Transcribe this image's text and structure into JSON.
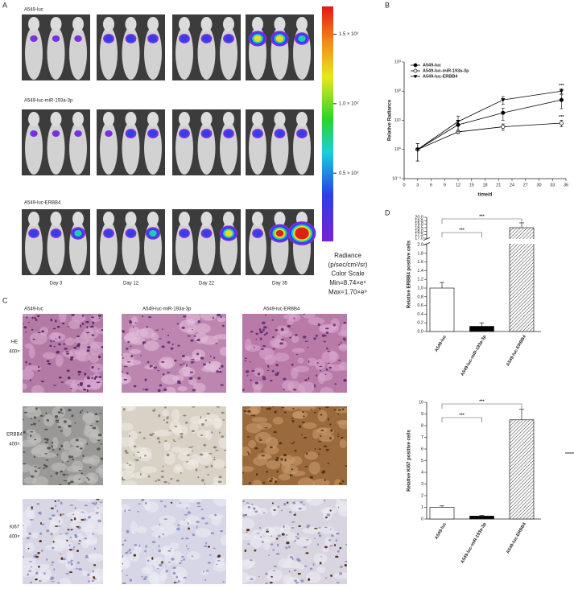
{
  "labels": [
    "A",
    "B",
    "C",
    "D"
  ],
  "imaging": {
    "rows": [
      "A549-luc",
      "A549-luc-miR-193a-3p",
      "A549-luc-ERBB4"
    ],
    "days": [
      "Day 3",
      "Day 12",
      "Day 22",
      "Day 35"
    ],
    "colorbar": {
      "lim": [
        8740000,
        1700000000
      ],
      "ticks": [
        {
          "value": 1500000000,
          "label": "1.5 × 10⁹"
        },
        {
          "value": 1000000000,
          "label": "1.0 × 10⁹"
        },
        {
          "value": 500000000,
          "label": "0.5 × 10⁹"
        }
      ]
    },
    "legend": [
      "Radiance",
      "(p/sec/cm²/sr)",
      "Color Scale",
      "Min=8.74×e⁶",
      "Max=1.70×e⁹"
    ]
  },
  "histology": {
    "columns": [
      "A549-luc",
      "A549-luc-miR-193a-3p",
      "A549-luc-ERBB4"
    ],
    "rows": [
      {
        "stain": "HE",
        "magnification": "400×"
      },
      {
        "stain": "ERBB4",
        "magnification": "400×"
      },
      {
        "stain": "Ki67",
        "magnification": "400×"
      }
    ]
  },
  "chart_data": [
    {
      "type": "line",
      "x": [
        3,
        12,
        22,
        35
      ],
      "series": [
        {
          "name": "A549-luc",
          "marker": "circle-filled",
          "values": [
            1,
            7,
            18,
            50
          ],
          "errors": [
            0.6,
            3,
            8,
            25
          ]
        },
        {
          "name": "A549-luc-miR-193a-3p",
          "marker": "circle-open",
          "values": [
            1,
            4,
            6,
            8
          ],
          "errors": [
            0.6,
            0.5,
            1.5,
            2
          ]
        },
        {
          "name": "A549-luc-ERBB4",
          "marker": "triangle-filled",
          "values": [
            1,
            9,
            50,
            100
          ],
          "errors": [
            0.6,
            5,
            15,
            20
          ]
        }
      ],
      "color": "#000000",
      "xlim": [
        0,
        36
      ],
      "xticks": [
        0,
        3,
        6,
        9,
        12,
        15,
        18,
        21,
        24,
        27,
        30,
        33,
        36
      ],
      "ylim": [
        0.1,
        1000
      ],
      "log_y": true,
      "yticks": [
        {
          "value": 0.1,
          "label": "10⁻¹"
        },
        {
          "value": 1,
          "label": "10⁰"
        },
        {
          "value": 10,
          "label": "10¹"
        },
        {
          "value": 100,
          "label": "10²"
        },
        {
          "value": 1000,
          "label": "10³"
        }
      ],
      "xlabel": "time/d",
      "ylabel": "Relative Radiance",
      "annotations": [
        "***",
        "***"
      ]
    },
    {
      "type": "bar",
      "categories": [
        "A549-luc",
        "A549-luc-miR-193a-3p",
        "A549-luc-ERBB4"
      ],
      "values": [
        1.0,
        0.12,
        18.5
      ],
      "errors": [
        0.13,
        0.08,
        0.7
      ],
      "patterns": [
        "none",
        "solid",
        "hatch"
      ],
      "ylim": [
        0,
        20
      ],
      "ybreak": [
        2,
        17
      ],
      "yticks": [
        {
          "value": 0,
          "label": "0.0"
        },
        0.2,
        0.4,
        0.6,
        0.8,
        {
          "value": 1,
          "label": "1.0"
        },
        1.2,
        1.4,
        1.6,
        1.8,
        {
          "value": 2,
          "label": "2.0"
        },
        {
          "value": 17,
          "label": "17.0"
        },
        17.5,
        {
          "value": 18,
          "label": "18.0"
        },
        18.5,
        {
          "value": 19,
          "label": "19.0"
        },
        19.5,
        {
          "value": 20,
          "label": "20.0"
        }
      ],
      "ylabel": "Relative ERBB4 positive cells",
      "annotations": [
        "***",
        "***"
      ]
    },
    {
      "type": "bar",
      "categories": [
        "A549-luc",
        "A549-luc-miR-193a-3p",
        "A549-luc-ERBB4"
      ],
      "values": [
        1.0,
        0.25,
        8.5
      ],
      "errors": [
        0.12,
        0.05,
        0.9
      ],
      "patterns": [
        "none",
        "solid",
        "hatch"
      ],
      "ylim": [
        0,
        10
      ],
      "yticks": [
        0,
        1,
        2,
        3,
        4,
        5,
        6,
        7,
        8,
        9,
        10
      ],
      "ylabel": "Relative Ki67 positive cells",
      "annotations": [
        "***",
        "***"
      ]
    }
  ]
}
